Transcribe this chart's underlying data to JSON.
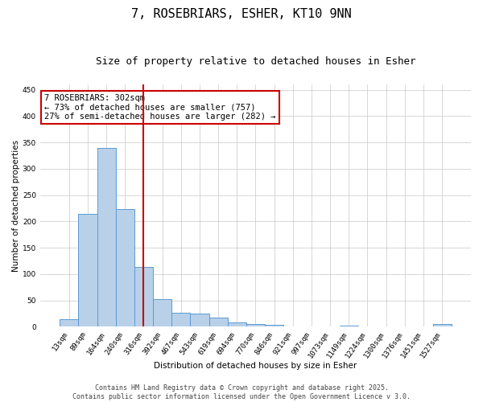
{
  "title": "7, ROSEBRIARS, ESHER, KT10 9NN",
  "subtitle": "Size of property relative to detached houses in Esher",
  "xlabel": "Distribution of detached houses by size in Esher",
  "ylabel": "Number of detached properties",
  "categories": [
    "13sqm",
    "89sqm",
    "164sqm",
    "240sqm",
    "316sqm",
    "392sqm",
    "467sqm",
    "543sqm",
    "619sqm",
    "694sqm",
    "770sqm",
    "846sqm",
    "921sqm",
    "997sqm",
    "1073sqm",
    "1149sqm",
    "1224sqm",
    "1300sqm",
    "1376sqm",
    "1451sqm",
    "1527sqm"
  ],
  "values": [
    15,
    215,
    340,
    224,
    113,
    53,
    26,
    25,
    18,
    8,
    5,
    4,
    0,
    0,
    0,
    2,
    0,
    0,
    0,
    0,
    5
  ],
  "bar_color": "#b8d0e8",
  "bar_edge_color": "#5b9bd5",
  "red_line_x": 4.5,
  "ylim": [
    0,
    460
  ],
  "yticks": [
    0,
    50,
    100,
    150,
    200,
    250,
    300,
    350,
    400,
    450
  ],
  "annotation_text": "7 ROSEBRIARS: 302sqm\n← 73% of detached houses are smaller (757)\n27% of semi-detached houses are larger (282) →",
  "annotation_box_color": "#ffffff",
  "annotation_border_color": "#cc0000",
  "footer_line1": "Contains HM Land Registry data © Crown copyright and database right 2025.",
  "footer_line2": "Contains public sector information licensed under the Open Government Licence v 3.0.",
  "background_color": "#ffffff",
  "grid_color": "#c8c8c8",
  "title_fontsize": 11,
  "subtitle_fontsize": 9,
  "axis_label_fontsize": 7.5,
  "tick_fontsize": 6.5,
  "annotation_fontsize": 7.5,
  "footer_fontsize": 6
}
